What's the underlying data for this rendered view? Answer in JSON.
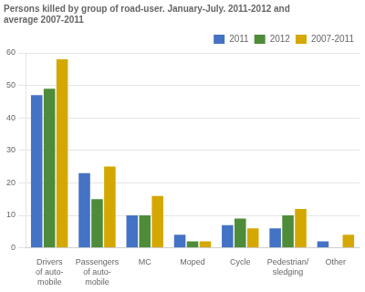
{
  "chart_data": {
    "type": "bar",
    "title": "Persons killed by group of road-user. January-July. 2011-2012 and\naverage 2007-2011",
    "categories": [
      "Drivers\nof auto-\nmobile",
      "Passengers\nof auto-\nmobile",
      "MC",
      "Moped",
      "Cycle",
      "Pedestrian/\nsledging",
      "Other"
    ],
    "series": [
      {
        "name": "2011",
        "color": "#4472c4",
        "values": [
          47,
          23,
          10,
          4,
          7,
          6,
          2
        ]
      },
      {
        "name": "2012",
        "color": "#4e8c3a",
        "values": [
          49,
          15,
          10,
          2,
          9,
          10,
          0
        ]
      },
      {
        "name": "2007-2011",
        "color": "#d4a800",
        "values": [
          58,
          25,
          16,
          2,
          6,
          12,
          4
        ]
      }
    ],
    "ylim": [
      0,
      60
    ],
    "yticks": [
      0,
      10,
      20,
      30,
      40,
      50,
      60
    ],
    "grid": true,
    "legend": "upper right"
  }
}
